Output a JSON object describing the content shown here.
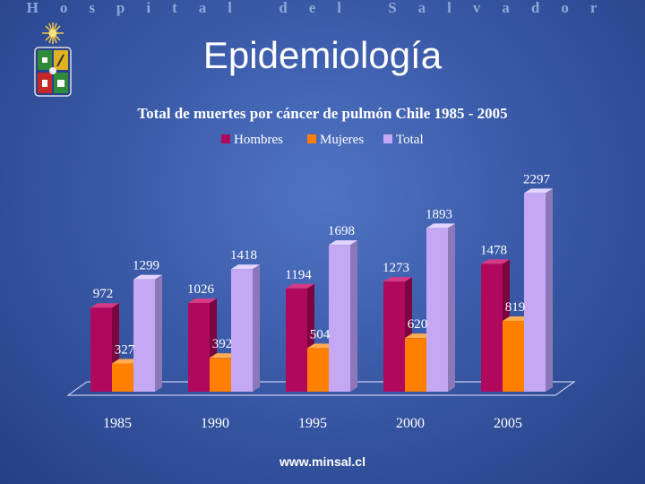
{
  "header": {
    "text": "Hospital del Salvador"
  },
  "slide": {
    "title": "Epidemiología",
    "footer": "www.minsal.cl"
  },
  "logo": {
    "icon": "university-crest-icon"
  },
  "colors": {
    "hombres": "#b0085c",
    "mujeres": "#ff7f00",
    "total": "#c4a8f4"
  },
  "chart_data": {
    "type": "bar",
    "title": "Total de muertes por cáncer de pulmón Chile 1985 - 2005",
    "categories": [
      "1985",
      "1990",
      "1995",
      "2000",
      "2005"
    ],
    "series": [
      {
        "name": "Hombres",
        "values": [
          972,
          1026,
          1194,
          1273,
          1478
        ]
      },
      {
        "name": "Mujeres",
        "values": [
          327,
          392,
          504,
          620,
          819
        ]
      },
      {
        "name": "Total",
        "values": [
          1299,
          1418,
          1698,
          1893,
          2297
        ]
      }
    ],
    "ylim": [
      0,
      2400
    ],
    "grid": false,
    "legend": "top",
    "style": "3d-column"
  }
}
